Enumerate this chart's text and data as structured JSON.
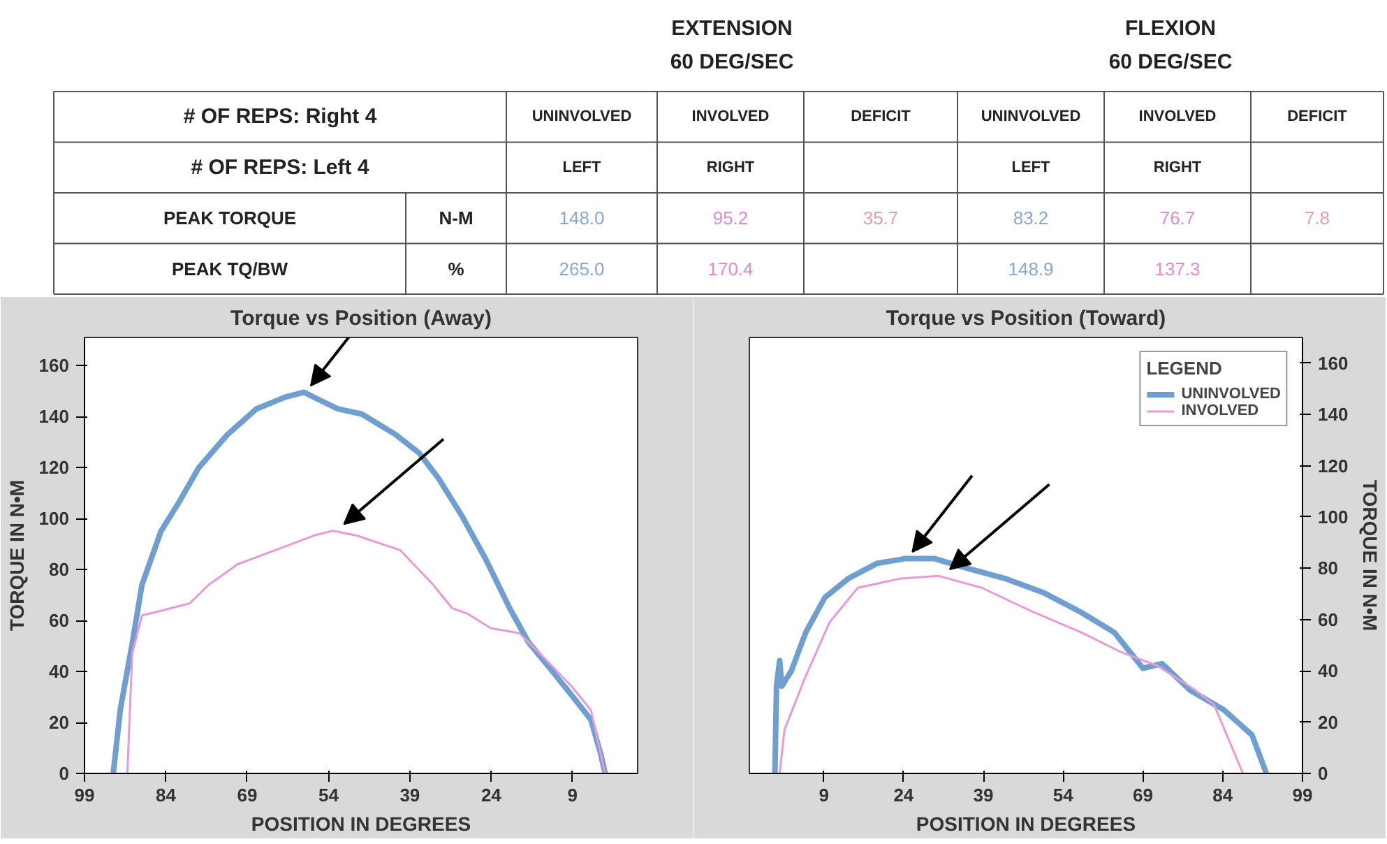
{
  "chart_data": [
    {
      "type": "other",
      "annotations": [
        "EXTENSION",
        "60 DEG/SEC",
        "FLEXION",
        "60 DEG/SEC",
        "# OF REPS: Right 4",
        "UNINVOLVED",
        "INVOLVED",
        "DEFICIT",
        "UNINVOLVED",
        "INVOLVED",
        "DEFICIT",
        "# OF REPS: Left 4",
        "LEFT",
        "RIGHT",
        "LEFT",
        "RIGHT",
        "PEAK TORQUE",
        "N-M",
        "148.0",
        "95.2",
        "35.7",
        "83.2",
        "76.7",
        "7.8",
        "PEAK TQ/BW",
        "%",
        "265.0",
        "170.4",
        "148.9",
        "137.3"
      ],
      "colors": [
        null,
        null,
        null,
        null,
        null,
        null,
        null,
        null,
        null,
        null,
        null,
        null,
        null,
        null,
        null,
        null,
        null,
        null,
        "#8aa8cc",
        "#e08ad0",
        "#e0a0a8",
        "#8aa8cc",
        "#e08ad0",
        "#e0a0a8",
        null,
        null,
        "#8aa8cc",
        "#e08ad0",
        "#8aa8cc",
        "#e08ad0"
      ]
    },
    {
      "type": "line",
      "title": "Torque vs Position (Away)",
      "xlabel": "POSITION IN DEGREES",
      "ylabel": "TORQUE IN N•M",
      "xlim": [
        99,
        -3
      ],
      "xticks": [
        99,
        84,
        69,
        54,
        39,
        24,
        9
      ],
      "ylim": [
        0,
        171
      ],
      "yticks": [
        0,
        20,
        40,
        60,
        80,
        100,
        120,
        140,
        160
      ],
      "grid": false,
      "series": [
        {
          "color": "#6f9fd0",
          "x": [
            93.7,
            92.4,
            90.2,
            88.4,
            84.9,
            81.4,
            77.9,
            72.6,
            67.3,
            62,
            58.5,
            55.8,
            52.3,
            47.9,
            41.7,
            37.3,
            33.8,
            29.4,
            25,
            20.6,
            17.1,
            12.7,
            9.1,
            5.6,
            3.8,
            3
          ],
          "values": [
            0,
            25,
            51,
            74,
            95,
            107,
            120,
            133,
            143,
            147.6,
            149.5,
            146.6,
            143,
            141,
            133,
            125.7,
            116,
            101,
            84,
            64.8,
            51.4,
            40,
            30.5,
            21,
            7.6,
            0
          ]
        },
        {
          "color": "#e79ad8",
          "x": [
            91.1,
            90.2,
            88.4,
            84.9,
            79.6,
            76.1,
            70.8,
            63.8,
            56.7,
            53.2,
            48.8,
            40.8,
            34.7,
            31.2,
            28.5,
            24.1,
            18.8,
            14.4,
            9.1,
            5.6,
            3
          ],
          "values": [
            0,
            47,
            62,
            63.8,
            66.7,
            74,
            82,
            87.6,
            93.3,
            95.2,
            93.3,
            87.6,
            74,
            64.8,
            62.8,
            57,
            55,
            45.7,
            34,
            24.8,
            0
          ]
        }
      ]
    },
    {
      "type": "line",
      "title": "Torque vs Position (Toward)",
      "xlabel": "POSITION IN DEGREES",
      "y2label": "TORQUE IN N•M",
      "xlim": [
        -5,
        99
      ],
      "xticks": [
        9,
        24,
        39,
        54,
        69,
        84,
        99
      ],
      "y2lim": [
        0,
        170
      ],
      "y2ticks": [
        0,
        20,
        40,
        60,
        80,
        100,
        120,
        140,
        160
      ],
      "grid": false,
      "legend": "top right",
      "legend_title": "LEGEND",
      "series": [
        {
          "name": "UNINVOLVED",
          "color": "#6f9fd0",
          "axis": "y2",
          "x": [
            -0.2,
            0.1,
            0.7,
            1.1,
            2.9,
            5.6,
            9.2,
            13.6,
            19,
            24.4,
            29.7,
            36,
            43.1,
            50.3,
            57.4,
            63.6,
            67.2,
            69,
            72.6,
            77.9,
            84.2,
            89.5,
            92.2
          ],
          "values": [
            0,
            34,
            44,
            34,
            40,
            55,
            68.6,
            76,
            81.9,
            83.8,
            83.8,
            80,
            76,
            70.5,
            62.8,
            55,
            45.7,
            41,
            42.8,
            32.4,
            24.8,
            15,
            0
          ]
        },
        {
          "name": "INVOLVED",
          "color": "#e79ad8",
          "axis": "y2",
          "x": [
            0.7,
            1.6,
            5.6,
            10.1,
            15.4,
            23.5,
            30.6,
            38.7,
            48.5,
            57.4,
            64.6,
            71.7,
            78.9,
            82.4,
            85.1,
            87.8
          ],
          "values": [
            0,
            17,
            38,
            59,
            72.4,
            76,
            77,
            72.4,
            62.8,
            55,
            47.6,
            42,
            32.4,
            26.7,
            13.3,
            0
          ]
        }
      ]
    }
  ]
}
